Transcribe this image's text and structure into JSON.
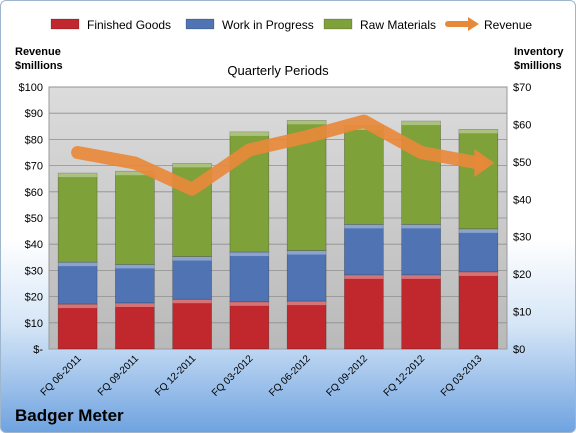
{
  "chart_data": {
    "type": "bar",
    "subtitle": "Quarterly Periods",
    "company": "Badger Meter",
    "left_axis": {
      "title_line1": "Revenue",
      "title_line2": "$millions",
      "min": 0,
      "max": 100,
      "step": 10,
      "ticks": [
        "$-",
        "$10",
        "$20",
        "$30",
        "$40",
        "$50",
        "$60",
        "$70",
        "$80",
        "$90",
        "$100"
      ]
    },
    "right_axis": {
      "title_line1": "Inventory",
      "title_line2": "$millions",
      "min": 0,
      "max": 70,
      "step": 10,
      "ticks": [
        "$0",
        "$10",
        "$20",
        "$30",
        "$40",
        "$50",
        "$60",
        "$70"
      ]
    },
    "categories": [
      "FQ 06-2011",
      "FQ 09-2011",
      "FQ 12-2011",
      "FQ 03-2012",
      "FQ 06-2012",
      "FQ 09-2012",
      "FQ 12-2012",
      "FQ 03-2013"
    ],
    "series": [
      {
        "name": "Finished Goods",
        "axis": "right",
        "color": "#c0282d",
        "values": [
          12.0,
          12.3,
          13.3,
          12.6,
          12.8,
          19.8,
          19.8,
          20.6
        ]
      },
      {
        "name": "Work in Progress",
        "axis": "right",
        "color": "#4f73b3",
        "values": [
          11.2,
          10.3,
          11.4,
          13.3,
          13.5,
          13.5,
          13.5,
          11.5
        ]
      },
      {
        "name": "Raw Materials",
        "axis": "right",
        "color": "#7fa13a",
        "values": [
          23.8,
          24.9,
          24.9,
          32.1,
          34.8,
          26.3,
          27.6,
          26.6
        ]
      },
      {
        "name": "Revenue",
        "axis": "left",
        "type": "line",
        "color": "#e8893a",
        "values": [
          75,
          71,
          61,
          76,
          81,
          87,
          75,
          71
        ]
      }
    ],
    "legend_position": "top",
    "grid": true
  }
}
